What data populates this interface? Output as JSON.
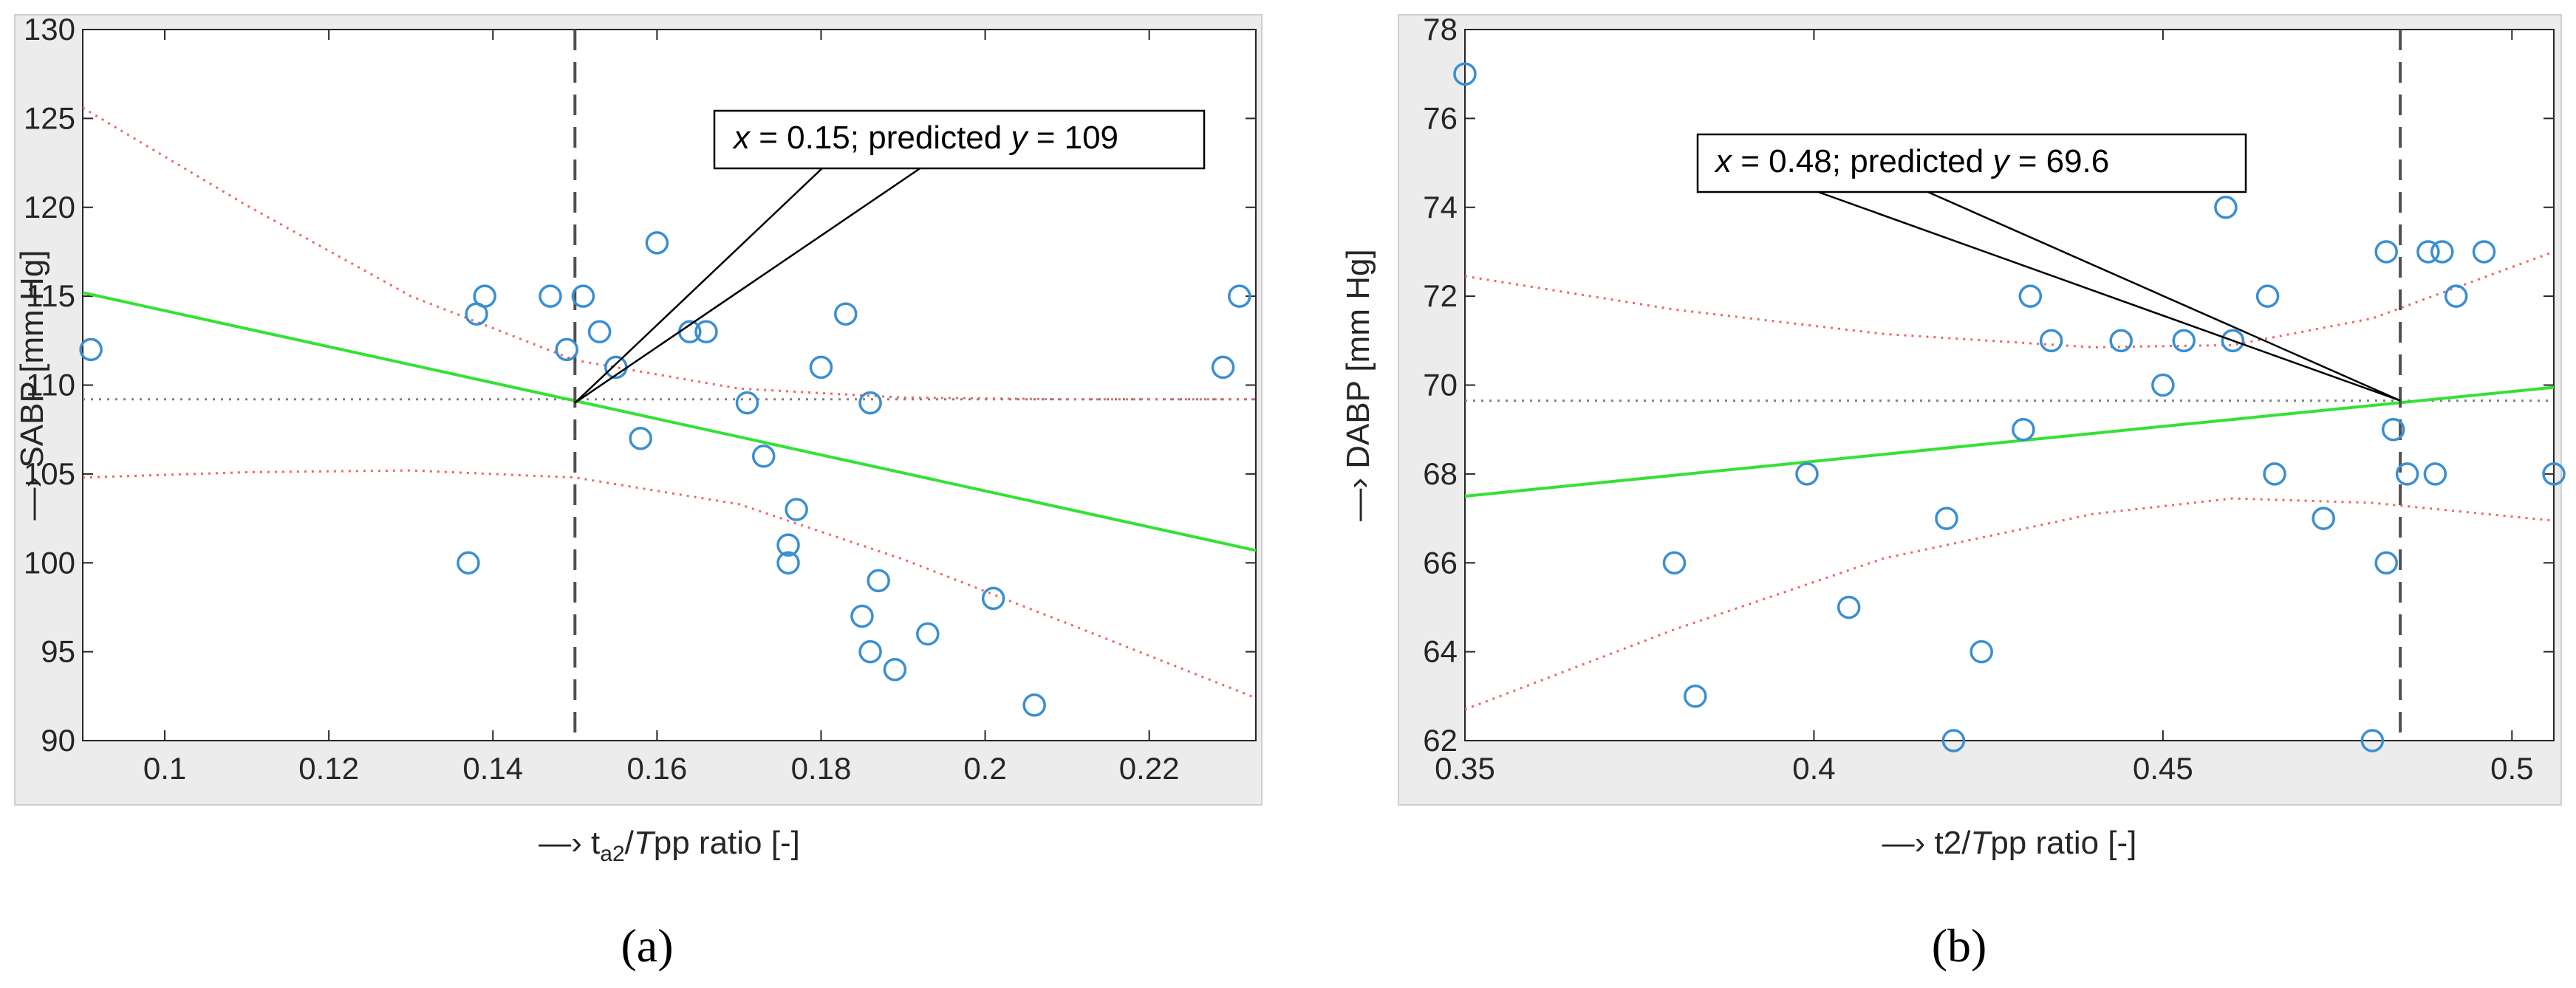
{
  "chart_data": [
    {
      "type": "scatter",
      "panel_label": "(a)",
      "xlabel": "t_a2/Tpp ratio [-]",
      "xlabel_parts": {
        "prefix": "—›  ",
        "t": "t",
        "sub": "a2",
        "slash": "/",
        "Tpp": "T",
        "rest": "pp ratio [-]"
      },
      "ylabel": "—›  SABP [mm Hg]",
      "xlim": [
        0.09,
        0.233
      ],
      "ylim": [
        90,
        130
      ],
      "xticks": [
        0.1,
        0.12,
        0.14,
        0.16,
        0.18,
        0.2,
        0.22
      ],
      "xtick_labels": [
        "0.1",
        "0.12",
        "0.14",
        "0.16",
        "0.18",
        "0.2",
        "0.22"
      ],
      "yticks": [
        90,
        95,
        100,
        105,
        110,
        115,
        120,
        125,
        130
      ],
      "ytick_labels": [
        "90",
        "95",
        "100",
        "105",
        "110",
        "115",
        "120",
        "125",
        "130"
      ],
      "points": [
        [
          0.091,
          112
        ],
        [
          0.137,
          100
        ],
        [
          0.138,
          114
        ],
        [
          0.139,
          115
        ],
        [
          0.147,
          115
        ],
        [
          0.149,
          112
        ],
        [
          0.151,
          115
        ],
        [
          0.153,
          113
        ],
        [
          0.155,
          111
        ],
        [
          0.158,
          107
        ],
        [
          0.16,
          118
        ],
        [
          0.164,
          113
        ],
        [
          0.166,
          113
        ],
        [
          0.171,
          109
        ],
        [
          0.173,
          106
        ],
        [
          0.176,
          101
        ],
        [
          0.176,
          100
        ],
        [
          0.177,
          103
        ],
        [
          0.18,
          111
        ],
        [
          0.183,
          114
        ],
        [
          0.185,
          97
        ],
        [
          0.186,
          95
        ],
        [
          0.186,
          109
        ],
        [
          0.187,
          99
        ],
        [
          0.189,
          94
        ],
        [
          0.193,
          96
        ],
        [
          0.201,
          98
        ],
        [
          0.206,
          92
        ],
        [
          0.229,
          111
        ],
        [
          0.231,
          115
        ]
      ],
      "fit_line": {
        "x": [
          0.09,
          0.233
        ],
        "y": [
          115.2,
          100.7
        ]
      },
      "ci_upper": {
        "x": [
          0.09,
          0.11,
          0.13,
          0.15,
          0.17,
          0.19,
          0.21,
          0.233
        ],
        "y": [
          125.6,
          120.1,
          115.0,
          111.4,
          109.8,
          109.3,
          109.2,
          109.2
        ]
      },
      "ci_lower": {
        "x": [
          0.09,
          0.11,
          0.13,
          0.15,
          0.17,
          0.19,
          0.21,
          0.233
        ],
        "y": [
          104.8,
          105.1,
          105.2,
          104.8,
          103.3,
          100.2,
          96.6,
          92.4
        ]
      },
      "hline_y": 109.2,
      "vline_x": 0.15,
      "annotation": {
        "x": 0.15,
        "y": 109,
        "x_var": "x",
        "x_text": " = 0.15; predicted ",
        "y_var": "y",
        "y_text": " = 109"
      },
      "colors": {
        "points": "#3a8fd1",
        "fit": "#33e233",
        "ci": "#f06464",
        "ref": "#808080"
      }
    },
    {
      "type": "scatter",
      "panel_label": "(b)",
      "xlabel": "t2/Tpp ratio [-]",
      "xlabel_parts": {
        "prefix": "—›  ",
        "t": "t2",
        "sub": "",
        "slash": "/",
        "Tpp": "T",
        "rest": "pp ratio [-]"
      },
      "ylabel": "—›  DABP [mm Hg]",
      "xlim": [
        0.35,
        0.506
      ],
      "ylim": [
        62,
        78
      ],
      "xticks": [
        0.35,
        0.4,
        0.45,
        0.5
      ],
      "xtick_labels": [
        "0.35",
        "0.4",
        "0.45",
        "0.5"
      ],
      "yticks": [
        62,
        64,
        66,
        68,
        70,
        72,
        74,
        76,
        78
      ],
      "ytick_labels": [
        "62",
        "64",
        "66",
        "68",
        "70",
        "72",
        "74",
        "76",
        "78"
      ],
      "points": [
        [
          0.35,
          77
        ],
        [
          0.38,
          66
        ],
        [
          0.383,
          63
        ],
        [
          0.399,
          68
        ],
        [
          0.405,
          65
        ],
        [
          0.419,
          67
        ],
        [
          0.42,
          62
        ],
        [
          0.424,
          64
        ],
        [
          0.43,
          69
        ],
        [
          0.431,
          72
        ],
        [
          0.434,
          71
        ],
        [
          0.444,
          71
        ],
        [
          0.45,
          70
        ],
        [
          0.453,
          71
        ],
        [
          0.459,
          74
        ],
        [
          0.46,
          71
        ],
        [
          0.465,
          72
        ],
        [
          0.466,
          68
        ],
        [
          0.473,
          67
        ],
        [
          0.48,
          62
        ],
        [
          0.482,
          73
        ],
        [
          0.482,
          66
        ],
        [
          0.483,
          69
        ],
        [
          0.485,
          68
        ],
        [
          0.488,
          73
        ],
        [
          0.489,
          68
        ],
        [
          0.49,
          73
        ],
        [
          0.492,
          72
        ],
        [
          0.496,
          73
        ],
        [
          0.506,
          68
        ]
      ],
      "fit_line": {
        "x": [
          0.35,
          0.506
        ],
        "y": [
          67.5,
          69.95
        ]
      },
      "ci_upper": {
        "x": [
          0.35,
          0.38,
          0.41,
          0.44,
          0.46,
          0.48,
          0.506
        ],
        "y": [
          72.45,
          71.7,
          71.15,
          70.85,
          70.9,
          71.5,
          73.0
        ]
      },
      "ci_lower": {
        "x": [
          0.35,
          0.38,
          0.41,
          0.44,
          0.46,
          0.48,
          0.506
        ],
        "y": [
          62.7,
          64.5,
          66.1,
          67.1,
          67.45,
          67.35,
          66.95
        ]
      },
      "hline_y": 69.65,
      "vline_x": 0.484,
      "annotation": {
        "x": 0.484,
        "y": 69.65,
        "x_var": "x",
        "x_text": " = 0.48; predicted ",
        "y_var": "y",
        "y_text": " = 69.6"
      },
      "colors": {
        "points": "#3a8fd1",
        "fit": "#33e233",
        "ci": "#f06464",
        "ref": "#808080"
      }
    }
  ]
}
